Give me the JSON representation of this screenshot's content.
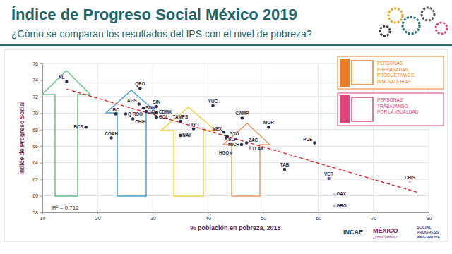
{
  "chart_data": {
    "type": "scatter",
    "title": "Índice de Progreso Social México 2019",
    "subtitle": "¿Cómo se comparan los resultados del IPS con el nivel de pobreza?",
    "x_label": "% población en pobreza, 2018",
    "y_label": "Índice de Progreso Social",
    "annotations": [
      "R² = 0.712"
    ],
    "xlim": [
      10,
      80
    ],
    "xticks": [
      10,
      20,
      30,
      40,
      50,
      60,
      70,
      80
    ],
    "ylim": [
      58,
      76
    ],
    "yticks": [
      58,
      60,
      62,
      64,
      66,
      68,
      70,
      72,
      74,
      76
    ],
    "grid": true,
    "series": [
      {
        "type": "scatter",
        "marker": "circle",
        "labels": [
          "NL",
          "QRO",
          "AGS",
          "SON",
          "SIN",
          "JAL",
          "CDMX",
          "COL",
          "BC",
          "Q ROO",
          "CHIH",
          "BCS",
          "COAH",
          "TAMPS",
          "DGO",
          "NAY",
          "YUC",
          "CAMP",
          "MOR",
          "MEX",
          "GTO",
          "SLP",
          "MICH",
          "ZAC",
          "TLAX",
          "HGO",
          "PUE",
          "TAB",
          "VER",
          "CHIS",
          "OAX",
          "GRO"
        ],
        "x": [
          14.4,
          27.7,
          27.5,
          28.3,
          30.7,
          28.8,
          30.7,
          30.7,
          23.3,
          25.1,
          26.4,
          17.9,
          22.5,
          35.0,
          37.4,
          35.0,
          40.9,
          46.2,
          51.0,
          42.9,
          43.5,
          43.3,
          46.1,
          47.0,
          47.6,
          44.2,
          59.3,
          53.9,
          61.9,
          76.6,
          62.9,
          62.9
        ],
        "values": [
          73.8,
          73.0,
          71.1,
          70.6,
          70.8,
          70.2,
          70.1,
          69.5,
          69.9,
          69.9,
          69.3,
          68.3,
          67.0,
          69.0,
          68.1,
          67.3,
          70.9,
          69.4,
          68.3,
          67.7,
          67.2,
          67.0,
          66.2,
          66.4,
          65.8,
          65.2,
          66.4,
          63.2,
          62.1,
          61.7,
          60.2,
          58.8
        ],
        "colors": [
          "#2b2b44",
          "#2b2b44",
          "#2b2b44",
          "#2b2b44",
          "#2b2b44",
          "#2b2b44",
          "#2b2b44",
          "#2b2b44",
          "#2b2b44",
          "#2b2b44",
          "#2b2b44",
          "#2b2b44",
          "#2b2b44",
          "#2b2b44",
          "#2b2b44",
          "#2b2b44",
          "#2b2b44",
          "#2b2b44",
          "#2b2b44",
          "#2b2b44",
          "#2b2b44",
          "#2b2b44",
          "#2b2b44",
          "#2b2b44",
          "#9a8fb5",
          "#6e6a80",
          "#2b2b44",
          "#2b2b44",
          "#7e57a6",
          "#d2c4e8",
          "#d2c4e8",
          "#c0b0dc"
        ]
      },
      {
        "type": "line",
        "line_style": "dashed",
        "color": "#e31a1c",
        "x": [
          14.4,
          78.1
        ],
        "values": [
          72.9,
          60.4
        ]
      }
    ],
    "side_boxes": [
      {
        "lines": [
          "PERSONAS",
          "PREPARADAS,",
          "PRODUCTIVAS E",
          "INNOVADORAS"
        ],
        "color": "#f07b26"
      },
      {
        "lines": [
          "PERSONAS",
          "TRABAJANDO",
          "POR LA IGUALDAD"
        ],
        "color": "#e2457a"
      }
    ],
    "footer": [
      "INCAE",
      "MÉXICO",
      "¿cómo vamos?",
      "SOCIAL",
      "PROGRESS",
      "IMPERATIVE"
    ]
  }
}
